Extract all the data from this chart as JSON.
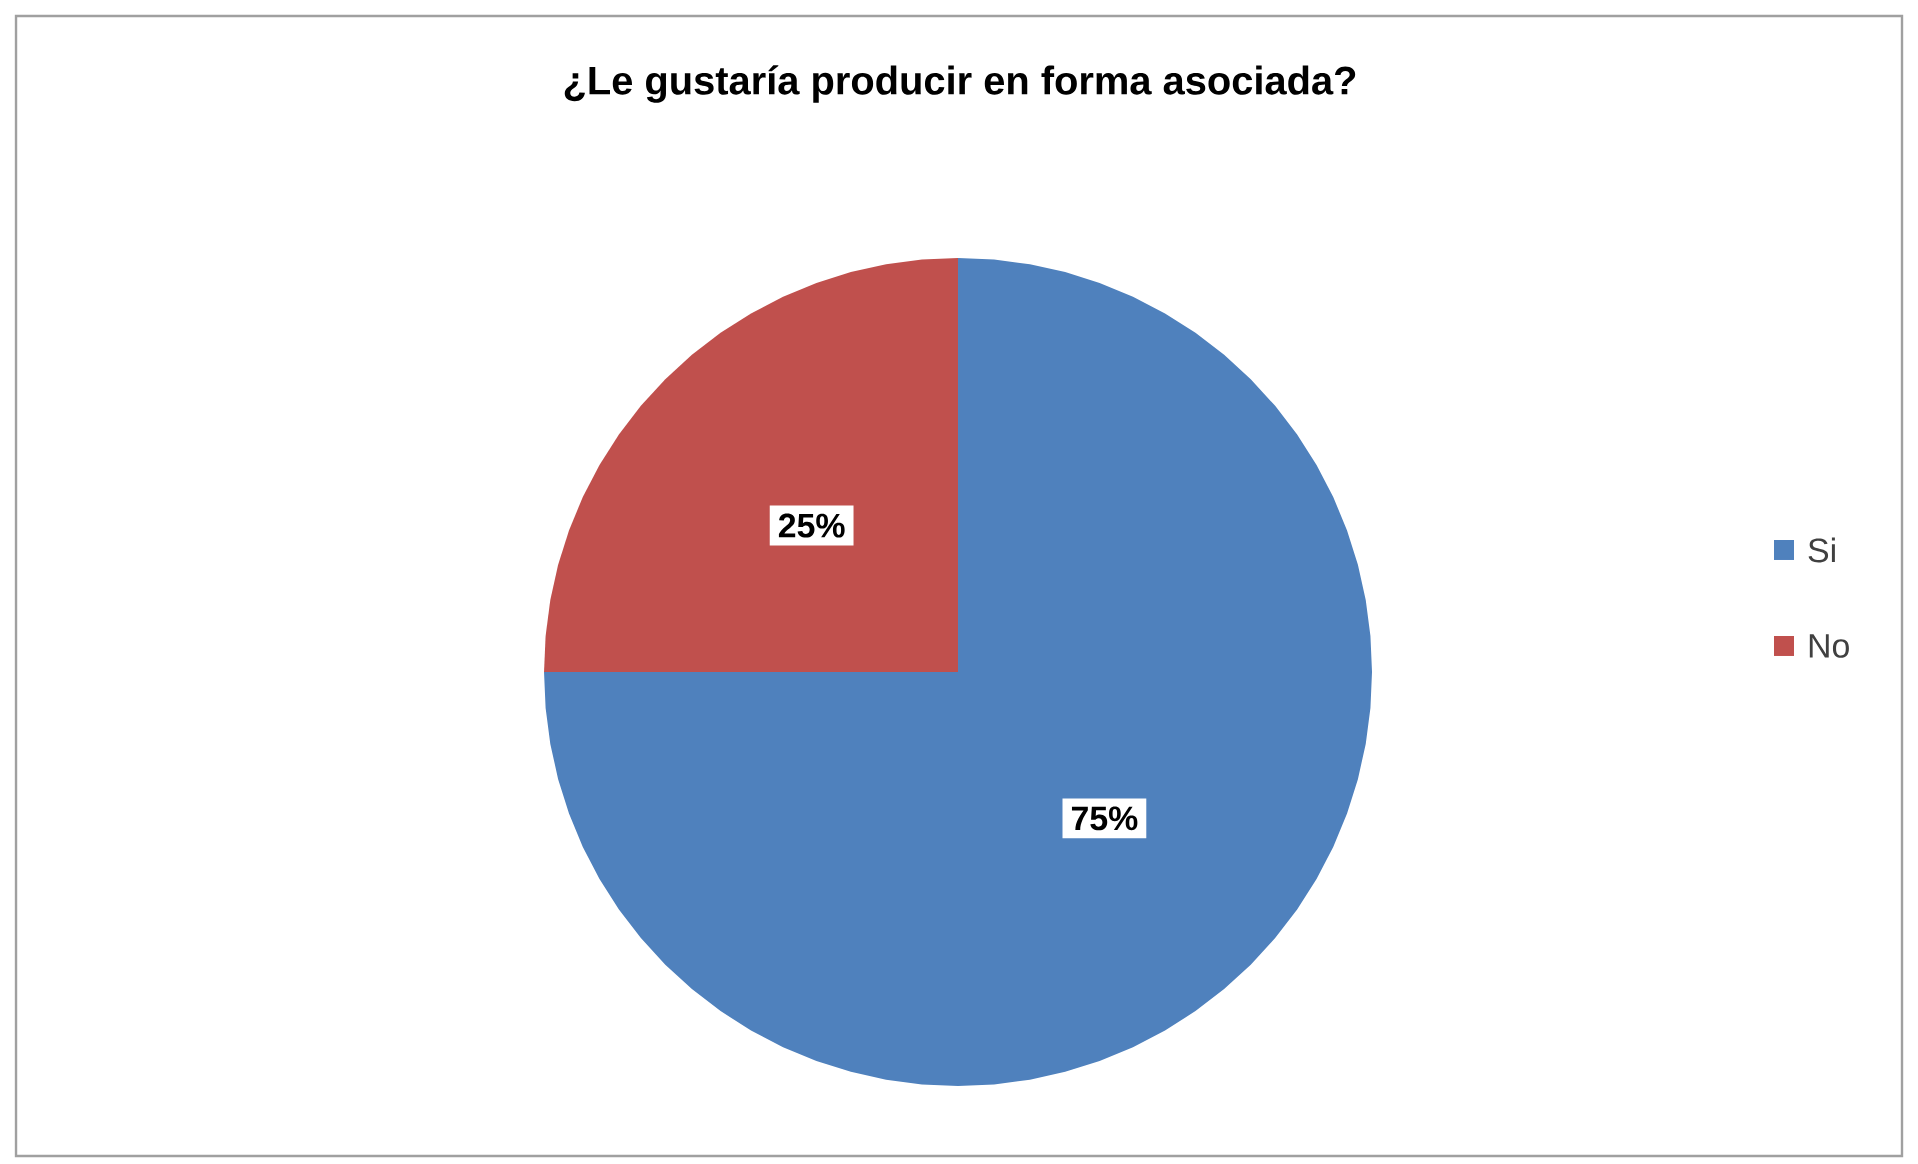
{
  "chart_data": {
    "type": "pie",
    "title": "¿Le gustaría producir en forma asociada?",
    "categories": [
      "Si",
      "No"
    ],
    "values": [
      75,
      25
    ],
    "colors": [
      "#4f81bd",
      "#c0504d"
    ],
    "value_labels": [
      "75%",
      "25%"
    ],
    "legend": "right"
  }
}
